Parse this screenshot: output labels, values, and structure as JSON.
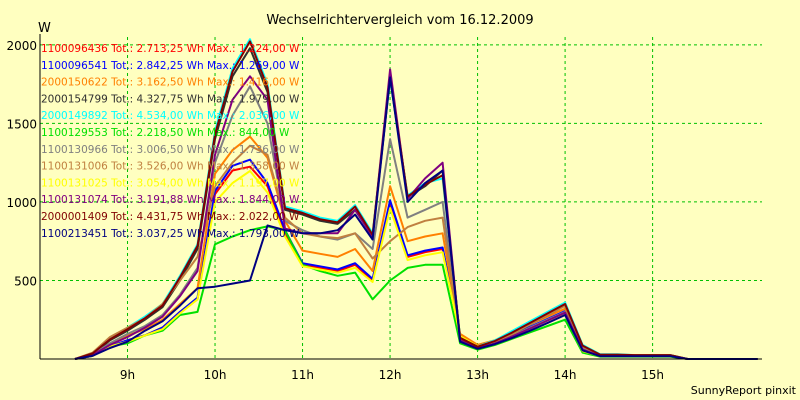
{
  "chart_data": {
    "type": "line",
    "title": "Wechselrichtervergleich vom 16.12.2009",
    "ylabel": "W",
    "xlabel": "",
    "footer": "SunnyReport pinxit",
    "ylim": [
      0,
      2050
    ],
    "xlim": [
      8.0,
      16.25
    ],
    "grid": true,
    "yticks": [
      500,
      1000,
      1500,
      2000
    ],
    "xticks": [
      {
        "value": 9,
        "label": "9h"
      },
      {
        "value": 10,
        "label": "10h"
      },
      {
        "value": 11,
        "label": "11h"
      },
      {
        "value": 12,
        "label": "12h"
      },
      {
        "value": 13,
        "label": "13h"
      },
      {
        "value": 14,
        "label": "14h"
      },
      {
        "value": 15,
        "label": "15h"
      }
    ],
    "x": [
      8.4,
      8.6,
      8.8,
      9.0,
      9.2,
      9.4,
      9.6,
      9.8,
      10.0,
      10.2,
      10.4,
      10.6,
      10.8,
      11.0,
      11.2,
      11.4,
      11.6,
      11.8,
      12.0,
      12.2,
      12.4,
      12.6,
      12.8,
      13.0,
      13.2,
      13.4,
      13.6,
      13.8,
      14.0,
      14.2,
      14.4,
      14.6,
      14.8,
      15.0,
      15.2,
      15.4,
      15.6,
      15.8,
      16.0,
      16.2
    ],
    "series": [
      {
        "name": "1100096436",
        "legend": "1100096436 Tot.: 2.713,25 Wh Max.: 1.224,00 W",
        "color": "#ff0000",
        "values": [
          0,
          20,
          80,
          120,
          150,
          200,
          300,
          380,
          1050,
          1200,
          1224,
          1100,
          800,
          600,
          580,
          560,
          600,
          500,
          1000,
          650,
          680,
          700,
          150,
          80,
          100,
          150,
          200,
          250,
          300,
          50,
          20,
          20,
          20,
          20,
          20,
          0,
          0,
          0,
          0,
          0
        ]
      },
      {
        "name": "1100096541",
        "legend": "1100096541 Tot.: 2.842,25 Wh Max.: 1.269,00 W",
        "color": "#0000ff",
        "values": [
          0,
          20,
          80,
          120,
          150,
          200,
          300,
          390,
          1070,
          1230,
          1269,
          1120,
          820,
          610,
          590,
          570,
          610,
          510,
          1010,
          660,
          690,
          710,
          155,
          85,
          105,
          155,
          205,
          255,
          305,
          55,
          20,
          20,
          20,
          20,
          20,
          0,
          0,
          0,
          0,
          0
        ]
      },
      {
        "name": "2000150622",
        "legend": "2000150622 Tot.: 3.162,50 Wh Max.: 1.416,00 W",
        "color": "#ff8000",
        "values": [
          0,
          30,
          100,
          150,
          190,
          250,
          350,
          450,
          1180,
          1330,
          1416,
          1280,
          880,
          690,
          670,
          650,
          700,
          560,
          1100,
          750,
          780,
          800,
          160,
          90,
          120,
          170,
          220,
          270,
          320,
          60,
          25,
          25,
          20,
          20,
          20,
          0,
          0,
          0,
          0,
          0
        ]
      },
      {
        "name": "2000154799",
        "legend": "2000154799 Tot.: 4.327,75 Wh Max.: 1.979,00 W",
        "color": "#303030",
        "values": [
          0,
          30,
          120,
          180,
          250,
          330,
          500,
          700,
          1400,
          1800,
          1979,
          1700,
          950,
          920,
          880,
          860,
          950,
          780,
          1800,
          1030,
          1100,
          1200,
          130,
          75,
          110,
          160,
          220,
          280,
          340,
          80,
          25,
          25,
          25,
          25,
          25,
          0,
          0,
          0,
          0,
          0
        ]
      },
      {
        "name": "2000149892",
        "legend": "2000149892 Tot.: 4.534,00 Wh Max.: 2.036,00 W",
        "color": "#00ffff",
        "values": [
          0,
          35,
          130,
          200,
          270,
          350,
          530,
          730,
          1450,
          1850,
          2036,
          1750,
          970,
          940,
          900,
          880,
          980,
          800,
          1780,
          1040,
          1120,
          1150,
          140,
          80,
          120,
          180,
          240,
          300,
          360,
          90,
          30,
          30,
          25,
          25,
          25,
          0,
          0,
          0,
          0,
          0
        ]
      },
      {
        "name": "1100129553",
        "legend": "1100129553 Tot.: 2.218,50 Wh Max.: 844,00 W",
        "color": "#00e000",
        "values": [
          0,
          20,
          80,
          100,
          150,
          180,
          280,
          300,
          730,
          780,
          820,
          844,
          820,
          600,
          560,
          530,
          550,
          380,
          500,
          580,
          600,
          600,
          100,
          60,
          90,
          130,
          170,
          210,
          250,
          40,
          15,
          15,
          15,
          15,
          15,
          0,
          0,
          0,
          0,
          0
        ]
      },
      {
        "name": "1100130966",
        "legend": "1100130966 Tot.: 3.006,50 Wh Max.: 1.736,00 W",
        "color": "#808080",
        "values": [
          0,
          30,
          100,
          160,
          210,
          280,
          410,
          580,
          1250,
          1550,
          1736,
          1500,
          880,
          820,
          780,
          760,
          800,
          700,
          1400,
          900,
          950,
          1000,
          120,
          70,
          100,
          150,
          200,
          250,
          300,
          70,
          20,
          20,
          20,
          20,
          20,
          0,
          0,
          0,
          0,
          0
        ]
      },
      {
        "name": "1100131006",
        "legend": "1100131006 Tot.: 3.526,00 Wh Max.: 1.358,00 W",
        "color": "#c08040",
        "values": [
          0,
          40,
          140,
          200,
          260,
          350,
          500,
          650,
          1100,
          1250,
          1358,
          1300,
          900,
          800,
          780,
          770,
          800,
          640,
          750,
          840,
          880,
          900,
          130,
          75,
          110,
          160,
          220,
          280,
          340,
          80,
          25,
          25,
          25,
          25,
          25,
          0,
          0,
          0,
          0,
          0
        ]
      },
      {
        "name": "1100131025",
        "legend": "1100131025 Tot.: 3.054,00 Wh Max.: 1.197,00 W",
        "color": "#ffff00",
        "values": [
          0,
          20,
          80,
          110,
          150,
          190,
          290,
          380,
          1000,
          1120,
          1197,
          1060,
          780,
          590,
          570,
          550,
          580,
          490,
          960,
          630,
          660,
          680,
          145,
          80,
          100,
          145,
          195,
          245,
          290,
          50,
          20,
          20,
          20,
          20,
          20,
          0,
          0,
          0,
          0,
          0
        ]
      },
      {
        "name": "1100131074",
        "legend": "1100131074 Tot.: 3.191,88 Wh Max.: 1.844,00 W",
        "color": "#800080",
        "values": [
          0,
          25,
          90,
          140,
          200,
          270,
          400,
          560,
          1300,
          1650,
          1800,
          1650,
          830,
          800,
          800,
          800,
          950,
          780,
          1844,
          1020,
          1150,
          1250,
          120,
          70,
          100,
          145,
          195,
          245,
          295,
          60,
          20,
          20,
          20,
          20,
          20,
          0,
          0,
          0,
          0,
          0
        ]
      },
      {
        "name": "2000001409",
        "legend": "2000001409 Tot.: 4.431,75 Wh Max.: 2.022,00 W",
        "color": "#800000",
        "values": [
          0,
          35,
          125,
          190,
          260,
          340,
          520,
          720,
          1430,
          1830,
          2022,
          1730,
          960,
          930,
          890,
          870,
          970,
          790,
          1790,
          1035,
          1110,
          1170,
          135,
          78,
          115,
          170,
          230,
          290,
          350,
          85,
          28,
          28,
          25,
          25,
          25,
          0,
          0,
          0,
          0,
          0
        ]
      },
      {
        "name": "1100213451",
        "legend": "1100213451 Tot.: 3.037,25 Wh Max.: 1.793,00 W",
        "color": "#000080",
        "values": [
          0,
          20,
          70,
          110,
          180,
          240,
          340,
          450,
          460,
          480,
          500,
          850,
          820,
          800,
          800,
          820,
          920,
          760,
          1793,
          1000,
          1120,
          1200,
          110,
          65,
          95,
          135,
          180,
          230,
          280,
          55,
          18,
          18,
          18,
          18,
          18,
          0,
          0,
          0,
          0,
          0
        ]
      }
    ]
  }
}
